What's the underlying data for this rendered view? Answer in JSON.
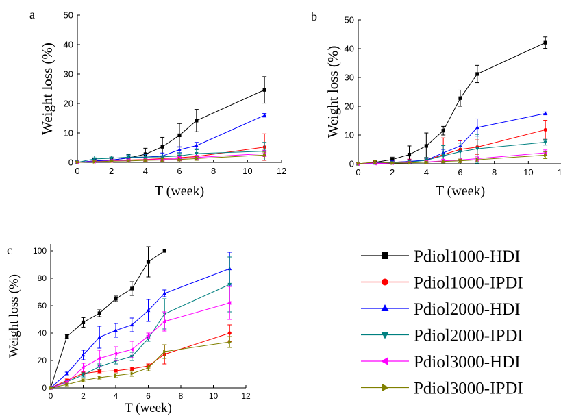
{
  "colors": {
    "Pdiol1000-HDI": "#000000",
    "Pdiol1000-IPDI": "#ff0000",
    "Pdiol2000-HDI": "#0000ff",
    "Pdiol2000-IPDI": "#008080",
    "Pdiol3000-HDI": "#ff00ff",
    "Pdiol3000-IPDI": "#808000"
  },
  "legend": {
    "items": [
      {
        "label": "Pdiol1000-HDI",
        "marker": "square"
      },
      {
        "label": "Pdiol1000-IPDI",
        "marker": "circle"
      },
      {
        "label": "Pdiol2000-HDI",
        "marker": "triangle-up"
      },
      {
        "label": "Pdiol2000-IPDI",
        "marker": "triangle-down"
      },
      {
        "label": "Pdiol3000-HDI",
        "marker": "triangle-left"
      },
      {
        "label": "Pdiol3000-IPDI",
        "marker": "triangle-right"
      }
    ]
  },
  "chart_data": [
    {
      "panel_label": "a",
      "type": "line",
      "xlabel": "T (week)",
      "ylabel": "Weight loss (%)",
      "xlim": [
        0,
        12
      ],
      "ylim": [
        0,
        50
      ],
      "xticks": [
        0,
        2,
        4,
        6,
        8,
        10,
        12
      ],
      "yticks": [
        0,
        10,
        20,
        30,
        40,
        50
      ],
      "x": [
        0,
        1,
        2,
        3,
        4,
        5,
        6,
        7,
        11
      ],
      "series": [
        {
          "name": "Pdiol1000-HDI",
          "values": [
            0,
            0.5,
            0.8,
            1.5,
            2.8,
            5.3,
            9.2,
            14.2,
            24.6
          ],
          "errors": [
            0.5,
            0.8,
            1,
            1.2,
            2,
            3.2,
            4,
            3.8,
            4.5
          ]
        },
        {
          "name": "Pdiol1000-IPDI",
          "values": [
            0,
            0.3,
            0.5,
            0.8,
            1.0,
            1.3,
            1.6,
            2.0,
            5.2
          ],
          "errors": [
            0.3,
            0.4,
            0.4,
            0.5,
            0.6,
            0.6,
            0.8,
            1,
            4.5
          ]
        },
        {
          "name": "Pdiol2000-HDI",
          "values": [
            0,
            0.5,
            0.8,
            1.5,
            1.8,
            2.2,
            4.3,
            5.7,
            16.0
          ],
          "errors": [
            0.5,
            0.6,
            0.8,
            0.8,
            0.9,
            1,
            1,
            1.1,
            0.6
          ]
        },
        {
          "name": "Pdiol2000-IPDI",
          "values": [
            0,
            1.2,
            1.4,
            1.8,
            1.8,
            1.9,
            2.2,
            3.0,
            3.8
          ],
          "errors": [
            0.5,
            1,
            0.8,
            0.8,
            1,
            1,
            1,
            1.3,
            3
          ]
        },
        {
          "name": "Pdiol3000-HDI",
          "values": [
            0,
            0.3,
            0.5,
            0.7,
            0.9,
            1.0,
            1.3,
            1.7,
            3.0
          ],
          "errors": [
            0.3,
            0.3,
            0.4,
            0.4,
            0.5,
            0.5,
            0.6,
            0.7,
            1
          ]
        },
        {
          "name": "Pdiol3000-IPDI",
          "values": [
            0,
            0.2,
            0.4,
            0.5,
            0.7,
            0.8,
            1.0,
            1.3,
            2.5
          ],
          "errors": [
            0.3,
            0.3,
            0.3,
            0.4,
            0.4,
            0.5,
            0.5,
            0.6,
            1
          ]
        }
      ]
    },
    {
      "panel_label": "b",
      "type": "line",
      "xlabel": "T (week)",
      "ylabel": "Weight loss (%)",
      "xlim": [
        0,
        12
      ],
      "ylim": [
        0,
        50
      ],
      "xticks": [
        0,
        2,
        4,
        6,
        8,
        10,
        12
      ],
      "yticks": [
        0,
        10,
        20,
        30,
        40,
        50
      ],
      "x": [
        0,
        1,
        2,
        3,
        4,
        5,
        6,
        7,
        11
      ],
      "series": [
        {
          "name": "Pdiol1000-HDI",
          "values": [
            0,
            0.5,
            1.5,
            3.2,
            6.2,
            11.5,
            22.8,
            31.2,
            42.1
          ],
          "errors": [
            0.5,
            0.5,
            0.8,
            3,
            4.5,
            1.5,
            2.8,
            3,
            2
          ]
        },
        {
          "name": "Pdiol1000-IPDI",
          "values": [
            0,
            0.3,
            0.5,
            0.8,
            1.2,
            3.2,
            5.0,
            5.8,
            11.8
          ],
          "errors": [
            0.4,
            0.4,
            0.5,
            0.8,
            1,
            5.8,
            3,
            2.5,
            3.3
          ]
        },
        {
          "name": "Pdiol2000-HDI",
          "values": [
            0,
            0.2,
            0.5,
            0.8,
            1.3,
            3.8,
            6.2,
            12.6,
            17.5
          ],
          "errors": [
            0.4,
            0.4,
            0.5,
            0.6,
            0.8,
            1.2,
            2,
            3,
            0.5
          ]
        },
        {
          "name": "Pdiol2000-IPDI",
          "values": [
            0,
            0.1,
            0.3,
            0.6,
            1.2,
            2.8,
            4.2,
            5.2,
            7.5
          ],
          "errors": [
            0.4,
            0.4,
            0.5,
            0.6,
            1,
            3.5,
            3,
            5,
            1
          ]
        },
        {
          "name": "Pdiol3000-HDI",
          "values": [
            0,
            0.1,
            0.2,
            0.4,
            0.6,
            1.0,
            1.3,
            1.8,
            3.8
          ],
          "errors": [
            0.3,
            0.3,
            0.3,
            0.4,
            0.5,
            0.6,
            0.7,
            0.8,
            1
          ]
        },
        {
          "name": "Pdiol3000-IPDI",
          "values": [
            0,
            0.6,
            0.2,
            0.3,
            0.5,
            0.8,
            1.0,
            1.4,
            3.0
          ],
          "errors": [
            0.3,
            0.5,
            0.3,
            0.4,
            0.4,
            0.5,
            0.6,
            0.7,
            1.2
          ]
        }
      ]
    },
    {
      "panel_label": "c",
      "type": "line",
      "xlabel": "T (week)",
      "ylabel": "Weight loss (%)",
      "xlim": [
        0,
        12
      ],
      "ylim": [
        0,
        105
      ],
      "xticks": [
        0,
        2,
        4,
        6,
        8,
        10,
        12
      ],
      "yticks": [
        0,
        20,
        40,
        60,
        80,
        100
      ],
      "series": [
        {
          "name": "Pdiol1000-HDI",
          "x": [
            0,
            1,
            2,
            3,
            4,
            5,
            6,
            7
          ],
          "values": [
            0,
            37.5,
            47.8,
            54.5,
            65.0,
            72.5,
            92.0,
            100
          ],
          "errors": [
            0,
            1.5,
            3.5,
            2.5,
            2,
            5,
            11,
            0
          ]
        },
        {
          "name": "Pdiol1000-IPDI",
          "x": [
            0,
            1,
            2,
            3,
            4,
            5,
            6,
            7,
            11
          ],
          "values": [
            0,
            5.5,
            10.5,
            12.0,
            12.5,
            14.0,
            16.0,
            24.5,
            40.0
          ],
          "errors": [
            0,
            1,
            1,
            1,
            1,
            1,
            1.5,
            7,
            6
          ]
        },
        {
          "name": "Pdiol2000-HDI",
          "x": [
            0,
            1,
            2,
            3,
            4,
            5,
            6,
            7,
            11
          ],
          "values": [
            0,
            10.5,
            24.0,
            37.0,
            42.0,
            46.0,
            56.5,
            69.0,
            87.0
          ],
          "errors": [
            0,
            1,
            3.5,
            8,
            5,
            5,
            8,
            2.5,
            12
          ]
        },
        {
          "name": "Pdiol2000-IPDI",
          "x": [
            0,
            1,
            2,
            3,
            4,
            5,
            6,
            7,
            11
          ],
          "values": [
            0,
            4.5,
            9.5,
            15.5,
            19.5,
            23.0,
            36.0,
            54.0,
            75.5
          ],
          "errors": [
            0,
            1,
            1.5,
            2,
            2,
            3,
            2,
            11,
            20
          ]
        },
        {
          "name": "Pdiol3000-HDI",
          "x": [
            0,
            1,
            2,
            3,
            4,
            5,
            6,
            7,
            11
          ],
          "values": [
            0,
            4.0,
            15.0,
            21.5,
            25.0,
            28.0,
            38.0,
            48.5,
            62.0
          ],
          "errors": [
            0,
            1,
            3,
            6,
            5,
            6,
            2,
            7,
            12
          ]
        },
        {
          "name": "Pdiol3000-IPDI",
          "x": [
            0,
            1,
            2,
            3,
            4,
            5,
            6,
            7,
            11
          ],
          "values": [
            0,
            2.5,
            5.5,
            7.5,
            9.0,
            10.5,
            14.5,
            26.5,
            33.5
          ],
          "errors": [
            0,
            1,
            1,
            1,
            1.5,
            2,
            2,
            5,
            4
          ]
        }
      ]
    }
  ]
}
